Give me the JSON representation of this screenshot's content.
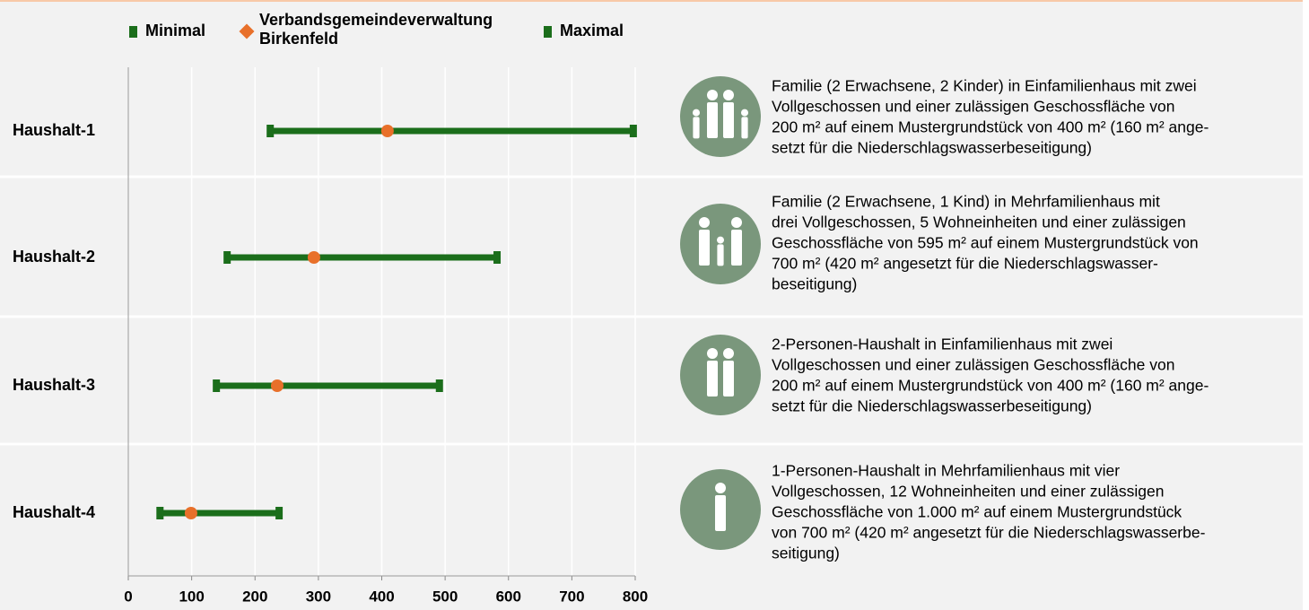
{
  "chart_data": {
    "type": "range",
    "categories": [
      "Haushalt-1",
      "Haushalt-2",
      "Haushalt-3",
      "Haushalt-4"
    ],
    "series": [
      {
        "name": "Minimal",
        "color": "#1b6e1b",
        "values": [
          224,
          156,
          139,
          50
        ]
      },
      {
        "name": "Verbandsgemeindeverwaltung Birkenfeld",
        "color": "#e8702a",
        "values": [
          409,
          293,
          235,
          99
        ]
      },
      {
        "name": "Maximal",
        "color": "#1b6e1b",
        "values": [
          797,
          582,
          491,
          238
        ]
      }
    ],
    "xlim": [
      0,
      800
    ],
    "xticks": [
      0,
      100,
      200,
      300,
      400,
      500,
      600,
      700,
      800
    ],
    "grid": true,
    "descriptions": [
      [
        "Familie (2 Erwachsene, 2 Kinder) in Einfamilienhaus mit zwei",
        "Vollgeschossen und einer zulässigen Geschossfläche von",
        "200 m² auf einem Mustergrundstück von 400 m² (160 m² ange-",
        "setzt für die Niederschlagswasserbeseitigung)"
      ],
      [
        "Familie (2 Erwachsene, 1 Kind) in Mehrfamilienhaus mit",
        "drei Vollgeschossen, 5 Wohneinheiten und einer zulässigen",
        "Geschossfläche von 595 m² auf einem Mustergrundstück von",
        "700 m² (420 m² angesetzt für die Niederschlagswasser-",
        "beseitigung)"
      ],
      [
        "2-Personen-Haushalt in Einfamilienhaus mit zwei",
        "Vollgeschossen und einer zulässigen Geschossfläche von",
        "200 m² auf einem Mustergrundstück von 400 m² (160 m² ange-",
        "setzt für die Niederschlagswasserbeseitigung)"
      ],
      [
        "1-Personen-Haushalt in Mehrfamilienhaus mit vier",
        "Vollgeschossen, 12 Wohneinheiten und einer zulässigen",
        "Geschossfläche von 1.000 m² auf einem Mustergrundstück",
        "von 700 m² (420 m² angesetzt für die Niederschlagswasserbe-",
        "seitigung)"
      ]
    ]
  }
}
